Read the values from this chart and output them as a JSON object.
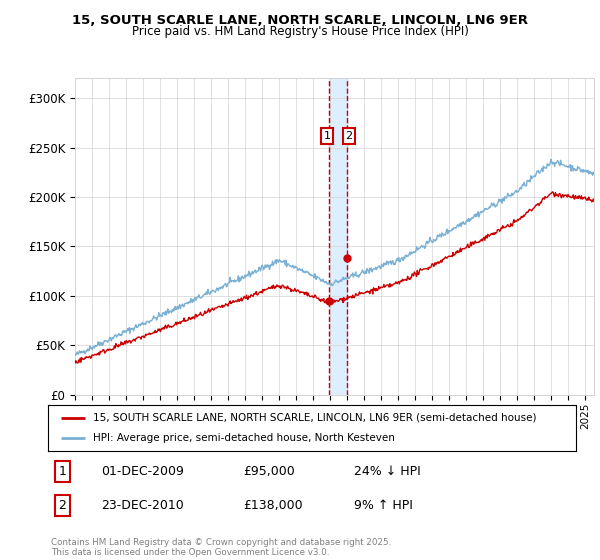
{
  "title_line1": "15, SOUTH SCARLE LANE, NORTH SCARLE, LINCOLN, LN6 9ER",
  "title_line2": "Price paid vs. HM Land Registry's House Price Index (HPI)",
  "ylim": [
    0,
    320000
  ],
  "yticks": [
    0,
    50000,
    100000,
    150000,
    200000,
    250000,
    300000
  ],
  "ytick_labels": [
    "£0",
    "£50K",
    "£100K",
    "£150K",
    "£200K",
    "£250K",
    "£300K"
  ],
  "sale1": {
    "date_num": 2009.92,
    "price": 95000,
    "label": "1",
    "date_str": "01-DEC-2009",
    "price_str": "£95,000",
    "pct": "24% ↓ HPI"
  },
  "sale2": {
    "date_num": 2010.98,
    "price": 138000,
    "label": "2",
    "date_str": "23-DEC-2010",
    "price_str": "£138,000",
    "pct": "9% ↑ HPI"
  },
  "legend_line1": "15, SOUTH SCARLE LANE, NORTH SCARLE, LINCOLN, LN6 9ER (semi-detached house)",
  "legend_line2": "HPI: Average price, semi-detached house, North Kesteven",
  "footer": "Contains HM Land Registry data © Crown copyright and database right 2025.\nThis data is licensed under the Open Government Licence v3.0.",
  "line_color_red": "#cc0000",
  "line_color_blue": "#7ab0d4",
  "annotation_box_color": "#cc0000",
  "shaded_region_color": "#ddeeff",
  "dashed_line_color": "#cc0000"
}
